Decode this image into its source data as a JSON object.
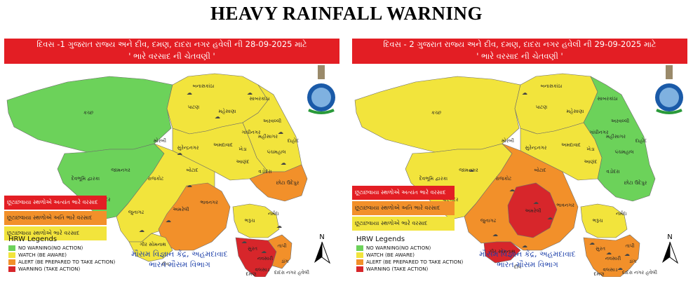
{
  "title": "HEAVY RAINFALL WARNING",
  "colors": {
    "no_warning": "#6cd25a",
    "watch": "#f2e43c",
    "alert": "#f2902a",
    "warning": "#d7262b",
    "banner": "#e31e24",
    "text_blue": "#1a3da8"
  },
  "legend": {
    "title": "HRW Legends",
    "items": [
      "NO WARNING(NO ACTION)",
      "WATCH (BE AWARE)",
      "ALERT (BE PREPARED TO TAKE ACTION)",
      "WARNING (TAKE ACTION)"
    ]
  },
  "impact_labels": {
    "extremely_heavy": "છૂટાછવાયા સ્થળોએ અત્યંત ભારે વરસાદ",
    "very_heavy": "છૂટાછવાયા સ્થળોએ અતિ ભારે વરસાદ",
    "heavy": "છૂટાછવાયા સ્થળોએ ભારે વરસાદ"
  },
  "office": {
    "line1": "મૌસમ વિજ્ઞાન કેંદ્ર, અહમદાવાદ",
    "line2": "ભારત મૌસમ વિભાગ"
  },
  "north_label": "N",
  "icon_names": [
    "rain-cloud-icon",
    "imd-emblem-icon",
    "north-arrow-icon"
  ],
  "panels": [
    {
      "banner_line1": "દિવસ -1 ગુજરાત રાજ્ય અને દીવ, દમણ, દાદરા નગર હવેલી ની 28-09-2025 માટે",
      "banner_line2": "' ભારે વરસાદ ની ચેતવણી '",
      "districts": {
        "kutch": "કચ્છ",
        "banaskantha": "બનાસકાંઠા",
        "patan": "પાટણ",
        "mehsana": "મહેસાણા",
        "sabarkantha": "સાબરકાંઠા",
        "aravalli": "અરવલ્લી",
        "gandhinagar": "ગાંધીનગર",
        "morbi": "મોરબી",
        "surendranagar": "સુરેન્દ્રનગર",
        "ahmedabad": "અમદાવાદ",
        "kheda": "ખેડા",
        "mahisagar": "મહીસાગર",
        "panchmahal": "પંચમહાલ",
        "dahod": "દાહોદ",
        "anand": "આણંદ",
        "vadodara": "વડોદરા",
        "chhota_udepur": "છોટા ઉદેપુર",
        "jamnagar": "જામનગર",
        "devbhumi_dwarka": "દેવભૂમિ દ્વારકા",
        "rajkot": "રાજકોટ",
        "botad": "બોટાદ",
        "porbandar": "પોરબંદર",
        "junagadh": "જુનાગઢ",
        "amreli": "અમરેલી",
        "bhavnagar": "ભાવનગર",
        "gir_somnath": "ગીર સોમનાથ",
        "bharuch": "ભરૂચ",
        "narmada": "નર્મદા",
        "surat": "સુરત",
        "tapi": "તાપી",
        "navsari": "નવસારી",
        "dang": "ડાંગ",
        "valsad": "વલસાડ",
        "diu": "દીવ",
        "daman": "દમણ",
        "dadra_nagar_haveli": "દાદરા નગર હવેલી"
      }
    },
    {
      "banner_line1": "દિવસ - 2 ગુજરાત રાજ્ય અને દીવ, દમણ, દાદરા નગર હવેલી ની 29-09-2025 માટે",
      "banner_line2": "' ભારે વરસાદ ની ચેતવણી '",
      "districts": {
        "kutch": "કચ્છ",
        "banaskantha": "બનાસકાંઠા",
        "patan": "પાટણ",
        "mehsana": "મહેસાણા",
        "sabarkantha": "સાબરકાંઠા",
        "aravalli": "અરવલ્લી",
        "gandhinagar": "ગાંધીનગર",
        "morbi": "મોરબી",
        "surendranagar": "સુરેન્દ્રનગર",
        "ahmedabad": "અમદાવાદ",
        "kheda": "ખેડા",
        "mahisagar": "મહીસાગર",
        "panchmahal": "પંચમહાલ",
        "dahod": "દાહોદ",
        "anand": "આણંદ",
        "vadodara": "વડોદરા",
        "chhota_udepur": "છોટા ઉદેપુર",
        "jamnagar": "જામનગર",
        "devbhumi_dwarka": "દેવભૂમિ દ્વારકા",
        "rajkot": "રાજકોટ",
        "botad": "બોટાદ",
        "porbandar": "પોરબંદર",
        "junagadh": "જુનાગઢ",
        "amreli": "અમરેલી",
        "bhavnagar": "ભાવનગર",
        "gir_somnath": "ગીર સોમનાથ",
        "bharuch": "ભરૂચ",
        "narmada": "નર્મદા",
        "surat": "સુરત",
        "tapi": "તાપી",
        "navsari": "નવસારી",
        "dang": "ડાંગ",
        "valsad": "વલસાડ",
        "diu": "દીવ",
        "daman": "દમણ",
        "dadra_nagar_haveli": "દાદરા નગર હવેલી"
      }
    }
  ]
}
